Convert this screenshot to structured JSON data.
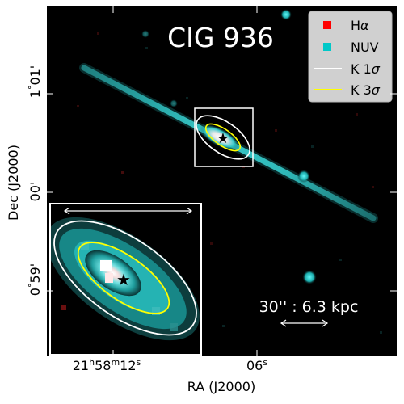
{
  "figure": {
    "title": "CIG 936",
    "xlabel": "RA (J2000)",
    "ylabel": "Dec (J2000)",
    "x_ticks": [
      {
        "main": "21",
        "h": "h",
        "m_val": "58",
        "m": "m",
        "s_val": "12",
        "s": "s"
      },
      {
        "main": "06",
        "h": "",
        "m_val": "",
        "m": "",
        "s_val": "",
        "s": "s"
      }
    ],
    "y_ticks": [
      {
        "deg": "1",
        "min": "01",
        "apos": "'"
      },
      {
        "deg": "",
        "min": "00",
        "apos": "'"
      },
      {
        "deg": "0",
        "min": "59",
        "apos": "'"
      }
    ],
    "scale_bar_label": "30'' : 6.3 kpc",
    "legend": [
      {
        "label": "H",
        "greek": "α",
        "suffix": "",
        "kind": "square",
        "color": "#ff0000"
      },
      {
        "label": "NUV",
        "greek": "",
        "suffix": "",
        "kind": "square",
        "color": "#00c8c8"
      },
      {
        "label": "K 1",
        "greek": "σ",
        "suffix": "",
        "kind": "line",
        "color": "#ffffff"
      },
      {
        "label": "K 3",
        "greek": "σ",
        "suffix": "",
        "kind": "line",
        "color": "#ffff00"
      }
    ],
    "colors": {
      "halpha": "#ff0000",
      "nuv": "#00c8c8",
      "k1sigma": "#ffffff",
      "k3sigma": "#ffff00",
      "background": "#000000"
    },
    "markers": [
      "star-marker"
    ]
  }
}
